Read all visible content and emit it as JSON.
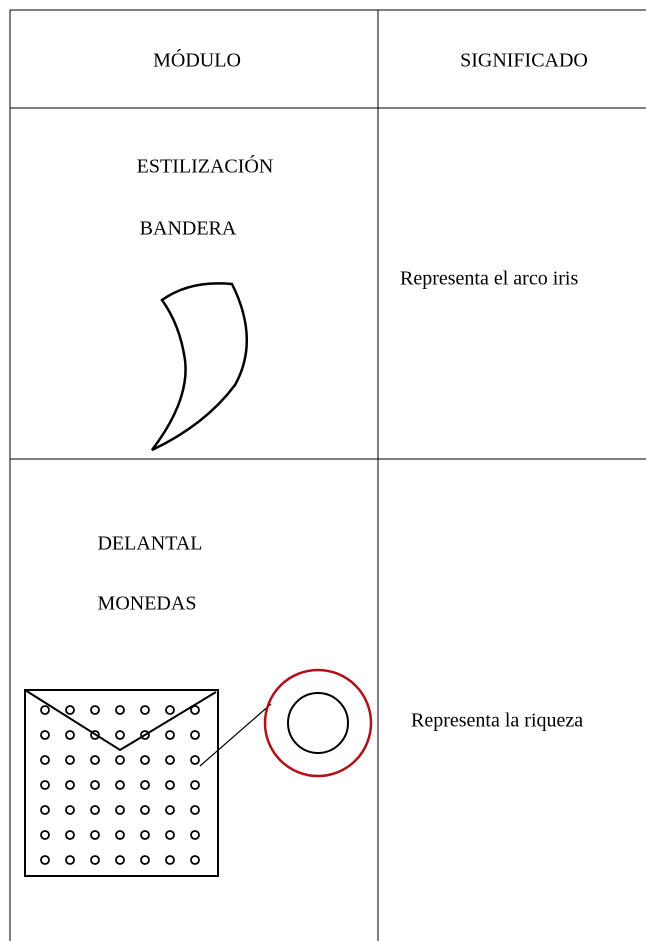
{
  "table": {
    "header": [
      "MÓDULO",
      "SIGNIFICADO"
    ],
    "rows": [
      [
        [
          "ESTILIZACIÓN",
          "BANDERA"
        ],
        "Representa el arco iris"
      ],
      [
        [
          "DELANTAL",
          "MONEDAS"
        ],
        "Representa la riqueza"
      ]
    ]
  }
}
